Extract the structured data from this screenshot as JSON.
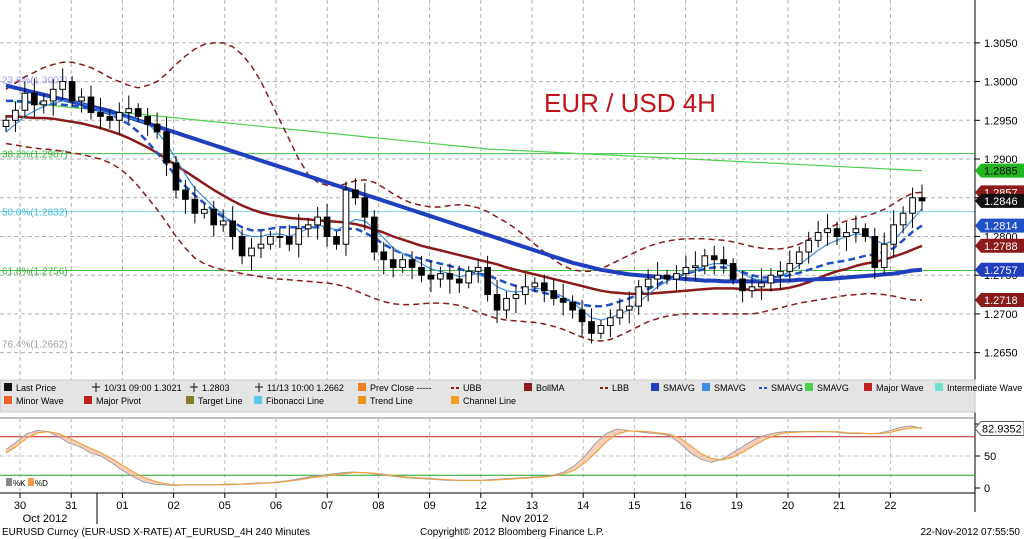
{
  "chart_data": {
    "type": "candlestick",
    "title": "EUR / USD 4H",
    "title_color": "#c0141a",
    "ylim": [
      1.2625,
      1.3095
    ],
    "y_ticks": [
      1.265,
      1.27,
      1.275,
      1.28,
      1.285,
      1.29,
      1.295,
      1.3,
      1.305
    ],
    "y_tick_labels": [
      "1.2650",
      "1.2700",
      "1.2750",
      "1.2800",
      "1.2850",
      "1.2900",
      "1.2950",
      "1.3000",
      "1.3050"
    ],
    "x_day_labels": [
      "30",
      "31",
      "01",
      "02",
      "05",
      "06",
      "07",
      "08",
      "09",
      "12",
      "13",
      "14",
      "15",
      "16",
      "19",
      "20",
      "21",
      "22"
    ],
    "x_month_labels": [
      "Oct 2012",
      "Nov 2012"
    ],
    "price_tags": [
      {
        "label": "1.2885",
        "value": 1.2885,
        "color": "#23b51f",
        "text_color": "#000000"
      },
      {
        "label": "1.2857",
        "value": 1.2857,
        "color": "#8b1a1a",
        "text_color": "#ffffff"
      },
      {
        "label": "1.2846",
        "value": 1.2846,
        "color": "#111111",
        "text_color": "#ffffff"
      },
      {
        "label": "1.2814",
        "value": 1.2814,
        "color": "#1f50c8",
        "text_color": "#ffffff"
      },
      {
        "label": "1.2788",
        "value": 1.2788,
        "color": "#8b1a1a",
        "text_color": "#ffffff"
      },
      {
        "label": "1.2757",
        "value": 1.2757,
        "color": "#1f3fbf",
        "text_color": "#ffffff"
      },
      {
        "label": "1.2718",
        "value": 1.2718,
        "color": "#8b1a1a",
        "text_color": "#ffffff"
      }
    ],
    "fib_levels": [
      {
        "label": "23.6%(1.3003)",
        "value": 1.3003
      },
      {
        "label": "38.2%(1.2907)",
        "value": 1.2907
      },
      {
        "label": "50.0%(1.2832)",
        "value": 1.2832
      },
      {
        "label": "61.8%(1.2756)",
        "value": 1.2756
      },
      {
        "label": "76.4%(1.2662)",
        "value": 1.2662
      }
    ],
    "horizontal_lines": [
      {
        "value": 1.2907,
        "color": "#3fbf3f"
      },
      {
        "value": 1.2832,
        "color": "#7fd8e8"
      },
      {
        "value": 1.2756,
        "color": "#3fbf3f"
      }
    ],
    "candles_close": [
      1.295,
      1.2963,
      1.2985,
      1.297,
      1.2975,
      1.299,
      1.3,
      1.2975,
      1.298,
      1.296,
      1.2955,
      1.295,
      1.296,
      1.2965,
      1.2955,
      1.2945,
      1.2935,
      1.2895,
      1.286,
      1.2848,
      1.283,
      1.2835,
      1.2815,
      1.282,
      1.28,
      1.2775,
      1.2785,
      1.279,
      1.28,
      1.28,
      1.279,
      1.281,
      1.2815,
      1.2825,
      1.28,
      1.279,
      1.286,
      1.285,
      1.2825,
      1.278,
      1.277,
      1.276,
      1.277,
      1.276,
      1.275,
      1.2745,
      1.2752,
      1.2745,
      1.274,
      1.2755,
      1.276,
      1.2725,
      1.2705,
      1.272,
      1.2725,
      1.2735,
      1.274,
      1.273,
      1.272,
      1.2715,
      1.2705,
      1.269,
      1.2675,
      1.2685,
      1.2695,
      1.2705,
      1.271,
      1.2735,
      1.2745,
      1.275,
      1.2745,
      1.2752,
      1.276,
      1.2762,
      1.2775,
      1.277,
      1.2765,
      1.2745,
      1.273,
      1.2735,
      1.274,
      1.275,
      1.2755,
      1.2765,
      1.278,
      1.2795,
      1.2805,
      1.281,
      1.28,
      1.2805,
      1.281,
      1.28,
      1.276,
      1.279,
      1.2815,
      1.283,
      1.285,
      1.2846
    ],
    "sma_fast": [
      1.2935,
      1.2945,
      1.2955,
      1.2962,
      1.2968,
      1.2972,
      1.2975,
      1.2975,
      1.2972,
      1.2968,
      1.2962,
      1.2958,
      1.2955,
      1.2953,
      1.295,
      1.2945,
      1.2935,
      1.292,
      1.29,
      1.288,
      1.2862,
      1.285,
      1.2838,
      1.2828,
      1.2815,
      1.2803,
      1.28,
      1.28,
      1.2803,
      1.2803,
      1.28,
      1.2805,
      1.281,
      1.2815,
      1.2812,
      1.2808,
      1.2815,
      1.2822,
      1.282,
      1.281,
      1.2798,
      1.2785,
      1.2778,
      1.2772,
      1.2765,
      1.2758,
      1.2755,
      1.2752,
      1.2748,
      1.275,
      1.2752,
      1.2745,
      1.2735,
      1.273,
      1.2728,
      1.273,
      1.2733,
      1.2732,
      1.2728,
      1.2722,
      1.2715,
      1.2705,
      1.2695,
      1.2692,
      1.2695,
      1.27,
      1.2705,
      1.2715,
      1.2725,
      1.2735,
      1.2742,
      1.2748,
      1.2752,
      1.2757,
      1.2762,
      1.2765,
      1.2765,
      1.276,
      1.2752,
      1.2746,
      1.2743,
      1.2745,
      1.2748,
      1.2755,
      1.2763,
      1.2773,
      1.2782,
      1.279,
      1.2795,
      1.28,
      1.2803,
      1.2803,
      1.2795,
      1.279,
      1.2795,
      1.2808,
      1.2822,
      1.2836
    ],
    "sma_mid": [
      1.2975,
      1.2975,
      1.2974,
      1.2973,
      1.2972,
      1.2971,
      1.297,
      1.2969,
      1.2967,
      1.2965,
      1.2962,
      1.2958,
      1.2952,
      1.2945,
      1.2935,
      1.2922,
      1.2908,
      1.2893,
      1.2878,
      1.2865,
      1.2853,
      1.2843,
      1.2833,
      1.2825,
      1.2818,
      1.2812,
      1.2808,
      1.2808,
      1.281,
      1.2812,
      1.2812,
      1.2812,
      1.2812,
      1.2812,
      1.281,
      1.2808,
      1.281,
      1.281,
      1.2805,
      1.2798,
      1.279,
      1.2783,
      1.2778,
      1.2774,
      1.2771,
      1.2768,
      1.2765,
      1.2762,
      1.2758,
      1.2755,
      1.2752,
      1.275,
      1.2745,
      1.274,
      1.2736,
      1.2733,
      1.273,
      1.2727,
      1.2724,
      1.272,
      1.2716,
      1.2712,
      1.271,
      1.271,
      1.2712,
      1.2716,
      1.272,
      1.2726,
      1.2732,
      1.2738,
      1.2744,
      1.2748,
      1.2752,
      1.2755,
      1.2758,
      1.276,
      1.276,
      1.2758,
      1.2754,
      1.275,
      1.2747,
      1.2747,
      1.2748,
      1.275,
      1.2753,
      1.2757,
      1.2761,
      1.2765,
      1.2767,
      1.2769,
      1.2772,
      1.2775,
      1.2777,
      1.278,
      1.2785,
      1.2795,
      1.2806,
      1.2814
    ],
    "bollma": [
      1.2955,
      1.2955,
      1.2954,
      1.2953,
      1.2953,
      1.2952,
      1.295,
      1.2948,
      1.2946,
      1.2943,
      1.294,
      1.2936,
      1.2932,
      1.2927,
      1.2921,
      1.2915,
      1.2908,
      1.29,
      1.2892,
      1.2884,
      1.2876,
      1.2868,
      1.286,
      1.2853,
      1.2846,
      1.284,
      1.2835,
      1.2831,
      1.2828,
      1.2826,
      1.2824,
      1.2823,
      1.2822,
      1.2821,
      1.282,
      1.2819,
      1.2818,
      1.2816,
      1.2813,
      1.2809,
      1.2805,
      1.28,
      1.2796,
      1.2792,
      1.2788,
      1.2785,
      1.2782,
      1.2779,
      1.2776,
      1.2773,
      1.277,
      1.2767,
      1.2764,
      1.276,
      1.2757,
      1.2754,
      1.2751,
      1.2748,
      1.2745,
      1.2742,
      1.2739,
      1.2736,
      1.2733,
      1.273,
      1.2728,
      1.2727,
      1.2726,
      1.2726,
      1.2726,
      1.2727,
      1.2728,
      1.2729,
      1.273,
      1.2731,
      1.2732,
      1.2733,
      1.2733,
      1.2733,
      1.2732,
      1.2731,
      1.2731,
      1.2731,
      1.2732,
      1.2734,
      1.2737,
      1.2741,
      1.2746,
      1.2751,
      1.2755,
      1.2758,
      1.2762,
      1.2765,
      1.2767,
      1.277,
      1.2774,
      1.2778,
      1.2783,
      1.2788
    ],
    "sma_slow": [
      1.2995,
      1.2992,
      1.2989,
      1.2986,
      1.2983,
      1.298,
      1.2977,
      1.2974,
      1.2971,
      1.2968,
      1.2965,
      1.2962,
      1.2958,
      1.2954,
      1.295,
      1.2946,
      1.2942,
      1.2938,
      1.2934,
      1.293,
      1.2926,
      1.2922,
      1.2918,
      1.2914,
      1.291,
      1.2906,
      1.2902,
      1.2898,
      1.2894,
      1.289,
      1.2886,
      1.2882,
      1.2878,
      1.2874,
      1.287,
      1.2866,
      1.2862,
      1.2858,
      1.2854,
      1.285,
      1.2846,
      1.2842,
      1.2838,
      1.2834,
      1.283,
      1.2826,
      1.2822,
      1.2818,
      1.2814,
      1.281,
      1.2806,
      1.2802,
      1.2798,
      1.2794,
      1.279,
      1.2786,
      1.2782,
      1.2778,
      1.2774,
      1.277,
      1.2766,
      1.2763,
      1.276,
      1.2757,
      1.2755,
      1.2753,
      1.2751,
      1.275,
      1.2749,
      1.2748,
      1.2747,
      1.2746,
      1.2745,
      1.2744,
      1.2743,
      1.2743,
      1.2742,
      1.2742,
      1.2742,
      1.2742,
      1.2742,
      1.2742,
      1.2743,
      1.2743,
      1.2744,
      1.2744,
      1.2745,
      1.2745,
      1.2746,
      1.2747,
      1.2748,
      1.2749,
      1.275,
      1.2751,
      1.2752,
      1.2754,
      1.2756,
      1.2757
    ],
    "sma_green": [
      1.2975,
      1.2973,
      1.2971,
      1.2969,
      1.2967,
      1.2965,
      1.2963,
      1.2961,
      1.2959,
      1.2957,
      1.2955,
      1.2953,
      1.2951,
      1.2949,
      1.2947,
      1.2945,
      1.2943,
      1.2941,
      1.2939,
      1.2937,
      1.2935,
      1.2933,
      1.2931,
      1.2929,
      1.2927,
      1.2925,
      1.2923,
      1.2921,
      1.2919,
      1.2917,
      1.2915,
      1.2913,
      1.2912,
      1.2911,
      1.291,
      1.2909,
      1.2908,
      1.2907,
      1.2906,
      1.2905,
      1.2904,
      1.2903,
      1.2902,
      1.2901,
      1.29,
      1.2899,
      1.2898,
      1.2897,
      1.2896,
      1.2895,
      1.2894,
      1.2893,
      1.2892,
      1.2891,
      1.289,
      1.2889,
      1.2888,
      1.2887,
      1.2886,
      1.2885
    ],
    "ubb": [
      1.299,
      1.2998,
      1.3006,
      1.3012,
      1.3018,
      1.3022,
      1.3025,
      1.3025,
      1.3022,
      1.3018,
      1.3012,
      1.3005,
      1.3,
      1.2995,
      1.2992,
      1.2995,
      1.3,
      1.301,
      1.3022,
      1.3033,
      1.3042,
      1.3048,
      1.305,
      1.305,
      1.3045,
      1.3035,
      1.302,
      1.3,
      1.2975,
      1.295,
      1.2925,
      1.29,
      1.288,
      1.287,
      1.2866,
      1.2865,
      1.2868,
      1.2872,
      1.2873,
      1.287,
      1.2863,
      1.2855,
      1.2848,
      1.2843,
      1.284,
      1.2838,
      1.2838,
      1.284,
      1.2841,
      1.284,
      1.2837,
      1.2832,
      1.2825,
      1.2818,
      1.281,
      1.28,
      1.279,
      1.278,
      1.277,
      1.2762,
      1.2757,
      1.2755,
      1.2755,
      1.2758,
      1.2764,
      1.277,
      1.2776,
      1.2782,
      1.2787,
      1.2791,
      1.2794,
      1.2796,
      1.2797,
      1.2797,
      1.2797,
      1.2796,
      1.2795,
      1.2793,
      1.279,
      1.2787,
      1.2785,
      1.2784,
      1.2784,
      1.2786,
      1.279,
      1.2796,
      1.2803,
      1.281,
      1.2816,
      1.282,
      1.2823,
      1.2826,
      1.283,
      1.2835,
      1.2842,
      1.285,
      1.2856,
      1.2857
    ],
    "lbb": [
      1.292,
      1.2918,
      1.2916,
      1.2914,
      1.2913,
      1.2912,
      1.291,
      1.2908,
      1.2906,
      1.2903,
      1.29,
      1.2895,
      1.2888,
      1.2878,
      1.2865,
      1.285,
      1.2835,
      1.2818,
      1.28,
      1.2785,
      1.2772,
      1.2765,
      1.276,
      1.2757,
      1.2755,
      1.2752,
      1.275,
      1.2748,
      1.2746,
      1.2745,
      1.2744,
      1.2743,
      1.2742,
      1.2741,
      1.274,
      1.2738,
      1.2735,
      1.273,
      1.2725,
      1.272,
      1.2716,
      1.2713,
      1.2712,
      1.2712,
      1.2713,
      1.2714,
      1.2714,
      1.2713,
      1.2711,
      1.2707,
      1.2702,
      1.2698,
      1.2694,
      1.2692,
      1.2691,
      1.269,
      1.2689,
      1.2687,
      1.2684,
      1.268,
      1.2675,
      1.267,
      1.2666,
      1.2665,
      1.2667,
      1.2672,
      1.2678,
      1.2684,
      1.269,
      1.2694,
      1.2697,
      1.2699,
      1.27,
      1.27,
      1.27,
      1.27,
      1.27,
      1.27,
      1.27,
      1.27,
      1.2702,
      1.2705,
      1.2708,
      1.2711,
      1.2714,
      1.2716,
      1.2718,
      1.272,
      1.2722,
      1.2724,
      1.2725,
      1.2726,
      1.2726,
      1.2725,
      1.2723,
      1.272,
      1.2718,
      1.2718
    ],
    "oscillator": {
      "ylim": [
        0,
        100
      ],
      "y_ticks": [
        0,
        50,
        100
      ],
      "y_tick_labels": [
        "0",
        "50",
        ""
      ],
      "levels": [
        {
          "value": 80,
          "color": "#c02020"
        },
        {
          "value": 20,
          "color": "#20a020"
        }
      ],
      "current_label": "82.9352",
      "k_values": [
        60,
        72,
        85,
        90,
        88,
        80,
        70,
        65,
        55,
        50,
        40,
        28,
        18,
        10,
        6,
        5,
        4,
        5,
        5,
        5,
        5,
        6,
        6,
        7,
        8,
        8,
        10,
        12,
        15,
        18,
        20,
        22,
        24,
        25,
        24,
        22,
        20,
        18,
        16,
        15,
        14,
        13,
        12,
        12,
        12,
        12,
        13,
        14,
        15,
        16,
        17,
        18,
        20,
        25,
        35,
        50,
        70,
        85,
        92,
        90,
        88,
        86,
        85,
        82,
        70,
        55,
        45,
        40,
        45,
        55,
        65,
        75,
        82,
        86,
        88,
        88,
        88,
        88,
        88,
        87,
        85,
        85,
        85,
        86,
        90,
        95,
        97,
        93
      ],
      "d_values": [
        55,
        65,
        78,
        86,
        88,
        85,
        78,
        70,
        62,
        55,
        46,
        36,
        26,
        17,
        11,
        7,
        5,
        5,
        5,
        5,
        5,
        5,
        6,
        6,
        7,
        8,
        9,
        11,
        13,
        16,
        18,
        20,
        22,
        24,
        24,
        23,
        21,
        19,
        17,
        16,
        15,
        14,
        13,
        12,
        12,
        12,
        12,
        13,
        14,
        15,
        16,
        17,
        19,
        22,
        28,
        40,
        55,
        72,
        84,
        89,
        89,
        88,
        86,
        84,
        78,
        66,
        54,
        46,
        44,
        48,
        56,
        66,
        75,
        82,
        86,
        87,
        88,
        88,
        88,
        88,
        86,
        86,
        85,
        85,
        87,
        91,
        94,
        94
      ],
      "legend": [
        {
          "label": "%K",
          "color": "#888888"
        },
        {
          "label": "%D",
          "color": "#f0a040"
        }
      ]
    },
    "legend": [
      {
        "label": "Last Price",
        "color": "#111111",
        "shape": "candle"
      },
      {
        "label": "10/31 09:00 1.3021",
        "color": "#111111",
        "shape": "marker"
      },
      {
        "label": "1.2803",
        "color": "#111111",
        "shape": "marker"
      },
      {
        "label": "11/13 10:00 1.2662",
        "color": "#111111",
        "shape": "marker"
      },
      {
        "label": "Prev Close -----",
        "color": "#f08020",
        "shape": "square"
      },
      {
        "label": "UBB",
        "color": "#8b1a1a",
        "shape": "dashed"
      },
      {
        "label": "BollMA",
        "color": "#8b1a1a",
        "shape": "square"
      },
      {
        "label": "LBB",
        "color": "#8b1a1a",
        "shape": "dashed"
      },
      {
        "label": "SMAVG",
        "color": "#1f3fbf",
        "shape": "square"
      },
      {
        "label": "SMAVG",
        "color": "#3b8fe0",
        "shape": "square"
      },
      {
        "label": "SMAVG",
        "color": "#1f50c8",
        "shape": "dashed"
      },
      {
        "label": "SMAVG",
        "color": "#50d050",
        "shape": "square"
      },
      {
        "label": "Major Wave",
        "color": "#c02020",
        "shape": "square"
      },
      {
        "label": "Intermediate Wave",
        "color": "#70e0d0",
        "shape": "square"
      },
      {
        "label": "Minor Wave",
        "color": "#f06020",
        "shape": "square"
      },
      {
        "label": "Major Pivot",
        "color": "#c02020",
        "shape": "square"
      },
      {
        "label": "Target Line",
        "color": "#808020",
        "shape": "square"
      },
      {
        "label": "Fibonacci Line",
        "color": "#60c8e8",
        "shape": "square"
      },
      {
        "label": "Trend Line",
        "color": "#f09020",
        "shape": "square"
      },
      {
        "label": "Channel Line",
        "color": "#f0a020",
        "shape": "square"
      }
    ]
  },
  "footer": {
    "left": "EURUSD Curncy (EUR-USD X-RATE) AT_EURUSD_4H  240 Minutes",
    "center": "Copyright© 2012 Bloomberg Finance L.P.",
    "right": "22-Nov-2012 07:55:50"
  }
}
